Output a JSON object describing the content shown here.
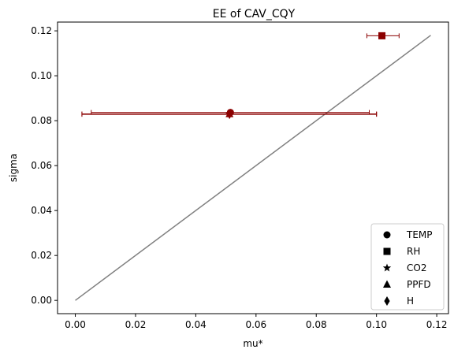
{
  "chart_data": {
    "type": "scatter",
    "title": "EE of CAV_CQY",
    "xlabel": "mu*",
    "ylabel": "sigma",
    "xlim": [
      -0.0059,
      0.1239
    ],
    "ylim": [
      -0.0059,
      0.1239
    ],
    "xticks": [
      0.0,
      0.02,
      0.04,
      0.06,
      0.08,
      0.1,
      0.12
    ],
    "xtick_labels": [
      "0.00",
      "0.02",
      "0.04",
      "0.06",
      "0.08",
      "0.10",
      "0.12"
    ],
    "yticks": [
      0.0,
      0.02,
      0.04,
      0.06,
      0.08,
      0.1,
      0.12
    ],
    "ytick_labels": [
      "0.00",
      "0.02",
      "0.04",
      "0.06",
      "0.08",
      "0.10",
      "0.12"
    ],
    "grid": false,
    "legend_position": "lower-right",
    "reference_line": {
      "x": [
        0.0,
        0.118
      ],
      "y": [
        0.0,
        0.118
      ],
      "color": "#808080"
    },
    "marker_color": "#8b0000",
    "series": [
      {
        "name": "TEMP",
        "marker": "circle",
        "x": 0.0515,
        "y": 0.0837,
        "xerr_low": 0.0053,
        "xerr_high": 0.0976
      },
      {
        "name": "RH",
        "marker": "square",
        "x": 0.1018,
        "y": 0.1178,
        "xerr_low": 0.0968,
        "xerr_high": 0.1075
      },
      {
        "name": "CO2",
        "marker": "star",
        "x": 0.0512,
        "y": 0.083,
        "xerr_low": 0.0022,
        "xerr_high": 0.1
      },
      {
        "name": "PPFD",
        "marker": "triangle",
        "x": 0.0512,
        "y": 0.083,
        "xerr_low": 0.0022,
        "xerr_high": 0.1
      },
      {
        "name": "H",
        "marker": "diamond",
        "x": 0.0512,
        "y": 0.0828,
        "xerr_low": 0.0022,
        "xerr_high": 0.1
      }
    ]
  }
}
